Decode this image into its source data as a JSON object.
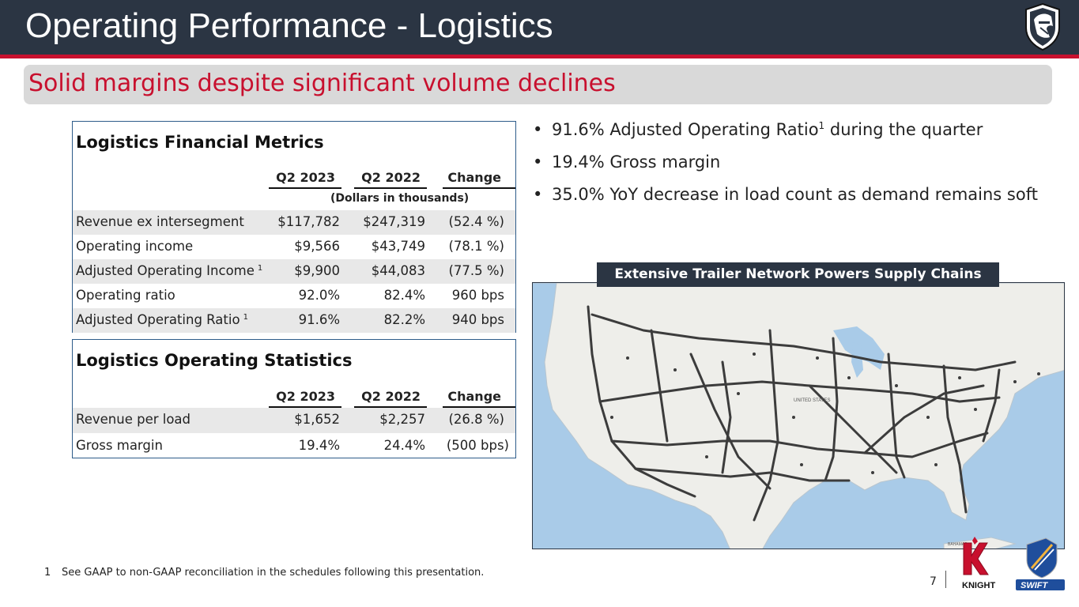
{
  "header": {
    "title": "Operating Performance - Logistics",
    "subtitle": "Solid margins despite significant volume declines"
  },
  "financial_metrics": {
    "title": "Logistics Financial Metrics",
    "columns": [
      "Q2 2023",
      "Q2 2022",
      "Change"
    ],
    "units_note": "(Dollars in thousands)",
    "rows": [
      {
        "label": "Revenue ex intersegment",
        "sup": "",
        "q2_2023": "$117,782",
        "q2_2022": "$247,319",
        "change": "(52.4 %)"
      },
      {
        "label": "Operating income",
        "sup": "",
        "q2_2023": "$9,566",
        "q2_2022": "$43,749",
        "change": "(78.1 %)"
      },
      {
        "label": "Adjusted Operating Income",
        "sup": "1",
        "q2_2023": "$9,900",
        "q2_2022": "$44,083",
        "change": "(77.5 %)"
      },
      {
        "label": "Operating ratio",
        "sup": "",
        "q2_2023": "92.0%",
        "q2_2022": "82.4%",
        "change": "960 bps"
      },
      {
        "label": "Adjusted Operating Ratio",
        "sup": "1",
        "q2_2023": "91.6%",
        "q2_2022": "82.2%",
        "change": "940 bps"
      }
    ]
  },
  "operating_statistics": {
    "title": "Logistics Operating Statistics",
    "columns": [
      "Q2 2023",
      "Q2 2022",
      "Change"
    ],
    "rows": [
      {
        "label": "Revenue per load",
        "q2_2023": "$1,652",
        "q2_2022": "$2,257",
        "change": "(26.8 %)"
      },
      {
        "label": "Gross margin",
        "q2_2023": "19.4%",
        "q2_2022": "24.4%",
        "change": "(500 bps)"
      }
    ]
  },
  "bullets": [
    {
      "text_before": "91.6% Adjusted Operating Ratio",
      "sup": "1",
      "text_after": " during the quarter"
    },
    {
      "text_before": "19.4% Gross margin",
      "sup": "",
      "text_after": ""
    },
    {
      "text_before": "35.0% YoY decrease in load count as demand remains soft",
      "sup": "",
      "text_after": ""
    }
  ],
  "map": {
    "label": "Extensive Trailer Network Powers Supply Chains",
    "place_labels": [
      "UNITED STATES",
      "BAHAMAS"
    ]
  },
  "footer": {
    "footnote_number": "1",
    "footnote_text": "See GAAP to non-GAAP reconciliation in the schedules following this presentation.",
    "page_number": "7",
    "brand_names": [
      "KNIGHT",
      "SWIFT"
    ]
  },
  "colors": {
    "header_bg": "#2b3543",
    "accent_red": "#c8102e",
    "panel_border": "#2e5c8a",
    "row_shade": "#e8e8e8",
    "map_water": "#a9cbe8",
    "map_land": "#eeeeea",
    "network": "#3c3c3c"
  }
}
